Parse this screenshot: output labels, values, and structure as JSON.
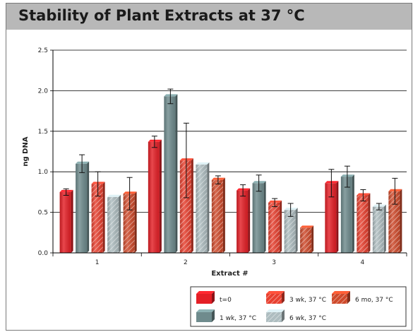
{
  "title": "Stability of Plant Extracts at 37 °C",
  "chart_data": {
    "type": "bar",
    "title": "Stability of Plant Extracts at 37 °C",
    "xlabel": "Extract #",
    "ylabel": "ng DNA",
    "categories": [
      "1",
      "2",
      "3",
      "4"
    ],
    "ylim": [
      0,
      2.5
    ],
    "yticks": [
      "0.0",
      "0.5",
      "1.0",
      "1.5",
      "2.0",
      "2.5"
    ],
    "grid": true,
    "legend_position": "bottom-right",
    "series": [
      {
        "name": "t=0",
        "color": "#e41f26",
        "values": [
          0.75,
          1.37,
          0.77,
          0.86
        ],
        "errors": [
          0.04,
          0.07,
          0.07,
          0.17
        ]
      },
      {
        "name": "1 wk, 37 °C",
        "color": "#6f8b8d",
        "values": [
          1.1,
          1.93,
          0.86,
          0.94
        ],
        "errors": [
          0.11,
          0.09,
          0.1,
          0.13
        ]
      },
      {
        "name": "3 wk, 37 °C",
        "color": "#e8402f",
        "values": [
          0.85,
          1.14,
          0.62,
          0.71
        ],
        "errors": [
          0.15,
          0.46,
          0.05,
          0.07
        ]
      },
      {
        "name": "6 wk, 37 °C",
        "color": "#aebdc0",
        "values": [
          0.69,
          1.09,
          0.53,
          0.57
        ],
        "errors": [
          0.0,
          0.0,
          0.08,
          0.04
        ]
      },
      {
        "name": "6 mo, 37 °C",
        "color": "#cf4a2b",
        "values": [
          0.73,
          0.9,
          0.31,
          0.76
        ],
        "errors": [
          0.2,
          0.05,
          0.0,
          0.16
        ]
      }
    ]
  }
}
